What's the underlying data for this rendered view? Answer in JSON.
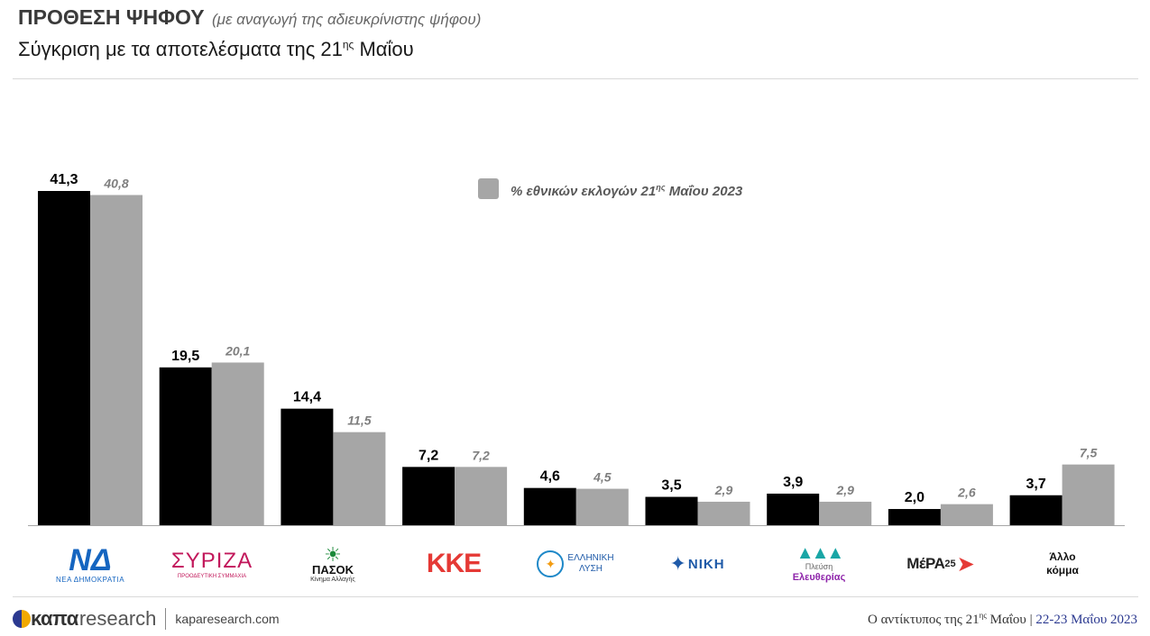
{
  "header": {
    "title": "ΠΡΟΘΕΣΗ ΨΗΦΟΥ",
    "title_note": "(με αναγωγή της αδιευκρίνιστης ψήφου)",
    "subtitle_main": "Σύγκριση με τα αποτελέσματα της 21",
    "subtitle_sup": "ης",
    "subtitle_end": " Μαΐου"
  },
  "chart_data": {
    "type": "bar",
    "categories": [
      "ΝΔ",
      "ΣΥΡΙΖΑ",
      "ΠΑΣΟΚ",
      "ΚΚΕ",
      "ΕΛΛΗΝΙΚΗ ΛΥΣΗ",
      "ΝΙΚΗ",
      "Πλεύση Ελευθερίας",
      "ΜέΡΑ25",
      "Άλλο κόμμα"
    ],
    "series": [
      {
        "values": [
          41.3,
          19.5,
          14.4,
          7.2,
          4.6,
          3.5,
          3.9,
          2.0,
          3.7
        ],
        "labels": [
          "41,3",
          "19,5",
          "14,4",
          "7,2",
          "4,6",
          "3,5",
          "3,9",
          "2,0",
          "3,7"
        ],
        "color": "#000000"
      },
      {
        "name": "% εθνικών εκλογών 21ης Μαΐου 2023",
        "values": [
          40.8,
          20.1,
          11.5,
          7.2,
          4.5,
          2.9,
          2.9,
          2.6,
          7.5
        ],
        "labels": [
          "40,8",
          "20,1",
          "11,5",
          "7,2",
          "4,5",
          "2,9",
          "2,9",
          "2,6",
          "7,5"
        ],
        "color": "#a6a6a6"
      }
    ],
    "legend": {
      "text_main": "% εθνικών εκλογών 21",
      "text_sup": "ης",
      "text_end": " Μαΐου 2023",
      "placement": "top-center"
    },
    "ylim": [
      0,
      45
    ],
    "grid": false
  },
  "logos": {
    "nd": {
      "mark": "ΝΔ",
      "text": "ΝΕΑ ΔΗΜΟΚΡΑΤΙΑ"
    },
    "syriza": {
      "mark": "ΣΥΡΙΖΑ",
      "text": "ΠΡΟΟΔΕΥΤΙΚΗ ΣΥΜΜΑΧΙΑ"
    },
    "pasok": {
      "mark": "ΠΑΣΟΚ",
      "text": "Κίνημα Αλλαγής"
    },
    "kke": {
      "mark": "ΚΚΕ"
    },
    "el": {
      "line1": "ΕΛΛΗΝΙΚΗ",
      "line2": "ΛΥΣΗ"
    },
    "niki": {
      "mark": "ΝΙΚΗ"
    },
    "pleusi": {
      "line1": "Πλεύση",
      "line2": "Ελευθερίας"
    },
    "mera": {
      "mark": "ΜέΡΑ",
      "num": "25"
    },
    "other": {
      "line1": "Άλλο",
      "line2": "κόμμα"
    }
  },
  "footer": {
    "brand_bold": "καπα",
    "brand_light": "research",
    "url": "kaparesearch.com",
    "note_main": "Ο αντίκτυπος της 21",
    "note_sup": "ης",
    "note_end": " Μαΐου",
    "date": "22-23 Μαΐου 2023"
  }
}
